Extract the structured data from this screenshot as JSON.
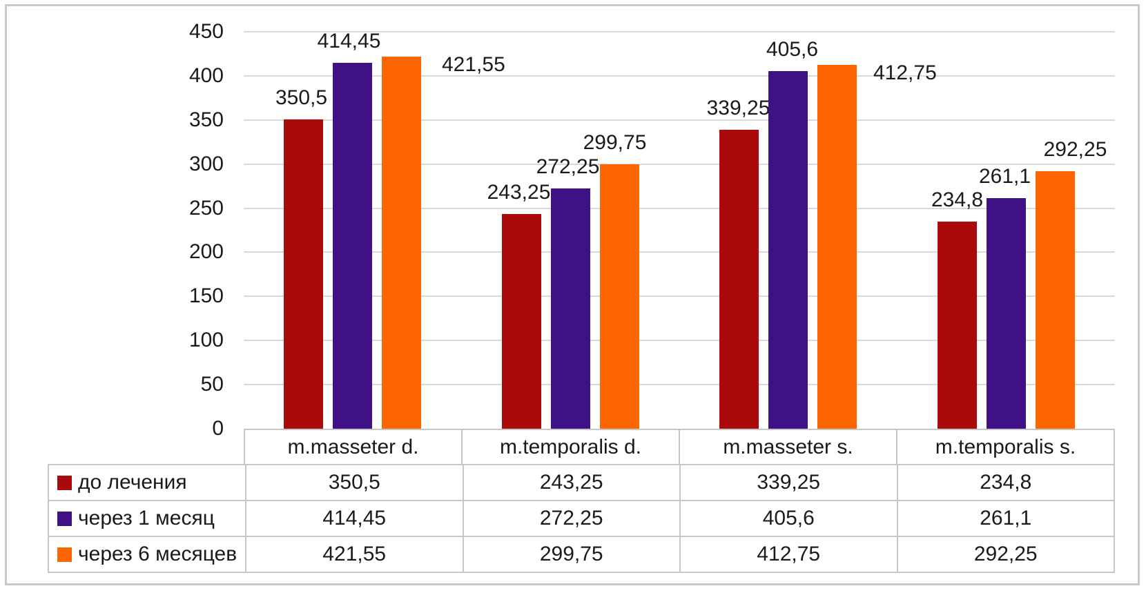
{
  "chart_data": {
    "type": "bar",
    "title": "",
    "xlabel": "",
    "ylabel": "",
    "categories": [
      "m.masseter d.",
      "m.temporalis d.",
      "m.masseter s.",
      "m.temporalis s."
    ],
    "series": [
      {
        "name": "до лечения",
        "color": "#AB0A0A",
        "values": [
          350.5,
          243.25,
          339.25,
          234.8
        ],
        "labels": [
          "350,5",
          "243,25",
          "339,25",
          "234,8"
        ]
      },
      {
        "name": "через 1 месяц",
        "color": "#3F1187",
        "values": [
          414.45,
          272.25,
          405.6,
          261.1
        ],
        "labels": [
          "414,45",
          "272,25",
          "405,6",
          "261,1"
        ]
      },
      {
        "name": "через 6 месяцев",
        "color": "#FC6500",
        "values": [
          421.55,
          299.75,
          412.75,
          292.25
        ],
        "labels": [
          "421,55",
          "299,75",
          "412,75",
          "292,25"
        ]
      }
    ],
    "ylim": [
      0,
      450
    ],
    "ytick_step": 50,
    "ytick_labels": [
      "0",
      "50",
      "100",
      "150",
      "200",
      "250",
      "300",
      "350",
      "400",
      "450"
    ],
    "grid": true,
    "value_labels_shown": true,
    "data_table_shown": true,
    "legend_position": "data-table-left",
    "layout": {
      "label_side": [
        [
          "top",
          "top",
          "top",
          "top"
        ],
        [
          "top",
          "top",
          "top",
          "top"
        ],
        [
          "right",
          "top",
          "right",
          "top"
        ]
      ],
      "label_dx": [
        [
          -3,
          -4,
          -1,
          0
        ],
        [
          -5,
          -4,
          6,
          -2
        ],
        [
          30,
          -7,
          24,
          29
        ]
      ]
    },
    "colors": {
      "grid": "#D9D9D9",
      "table_border": "#C6C6C6",
      "outer_border": "#C9C9C9",
      "text": "#1A1A1A"
    }
  }
}
